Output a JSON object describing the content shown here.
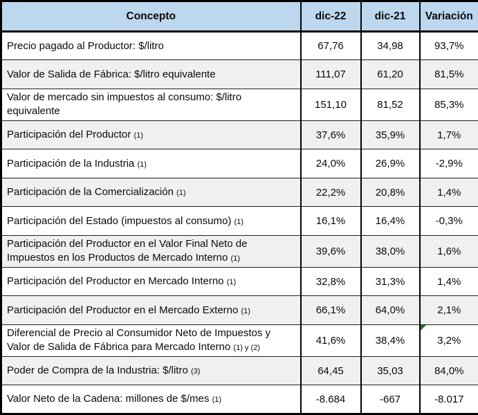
{
  "colors": {
    "header_bg": "#BDD7EE",
    "stripe_bg": "#F0F0F0",
    "border": "#000000",
    "flag_green": "#2F7030"
  },
  "table": {
    "columns": [
      "Concepto",
      "dic-22",
      "dic-21",
      "Variación"
    ],
    "rows": [
      {
        "concepto": "Precio pagado al Productor: $/litro",
        "note": "",
        "dic22": "67,76",
        "dic21": "34,98",
        "variacion": "93,7%",
        "flag": false
      },
      {
        "concepto": "Valor de Salida de Fábrica: $/litro equivalente",
        "note": "",
        "dic22": "111,07",
        "dic21": "61,20",
        "variacion": "81,5%",
        "flag": false
      },
      {
        "concepto": "Valor de mercado sin impuestos al consumo: $/litro equivalente",
        "note": "",
        "dic22": "151,10",
        "dic21": "81,52",
        "variacion": "85,3%",
        "flag": false
      },
      {
        "concepto": "Participación del Productor",
        "note": "(1)",
        "dic22": "37,6%",
        "dic21": "35,9%",
        "variacion": "1,7%",
        "flag": false
      },
      {
        "concepto": "Participación de la Industria",
        "note": "(1)",
        "dic22": "24,0%",
        "dic21": "26,9%",
        "variacion": "-2,9%",
        "flag": false
      },
      {
        "concepto": "Participación de la Comercialización",
        "note": "(1)",
        "dic22": "22,2%",
        "dic21": "20,8%",
        "variacion": "1,4%",
        "flag": false
      },
      {
        "concepto": "Participación del Estado (impuestos al consumo)",
        "note": "(1)",
        "dic22": "16,1%",
        "dic21": "16,4%",
        "variacion": "-0,3%",
        "flag": false
      },
      {
        "concepto": "Participación del Productor en el Valor Final Neto de Impuestos en los Productos de Mercado Interno",
        "note": "(1)",
        "dic22": "39,6%",
        "dic21": "38,0%",
        "variacion": "1,6%",
        "flag": false
      },
      {
        "concepto": "Participación del Productor en Mercado Interno",
        "note": "(1)",
        "dic22": "32,8%",
        "dic21": "31,3%",
        "variacion": "1,4%",
        "flag": false
      },
      {
        "concepto": "Participación del Productor en el Mercado Externo",
        "note": "(1)",
        "dic22": "66,1%",
        "dic21": "64,0%",
        "variacion": "2,1%",
        "flag": false
      },
      {
        "concepto": "Diferencial de Precio al Consumidor Neto de Impuestos y Valor de Salida de Fábrica para Mercado Interno",
        "note": "(1) y (2)",
        "dic22": "41,6%",
        "dic21": "38,4%",
        "variacion": "3,2%",
        "flag": true
      },
      {
        "concepto": "Poder de Compra de la Industria: $/litro",
        "note": "(3)",
        "dic22": "64,45",
        "dic21": "35,03",
        "variacion": "84,0%",
        "flag": false
      },
      {
        "concepto": "Valor Neto de la Cadena: millones de $/mes",
        "note": "(1)",
        "dic22": "-8.684",
        "dic21": "-667",
        "variacion": "-8.017",
        "flag": false
      }
    ]
  },
  "icons": {
    "error_flag": "corner-triangle-icon"
  }
}
